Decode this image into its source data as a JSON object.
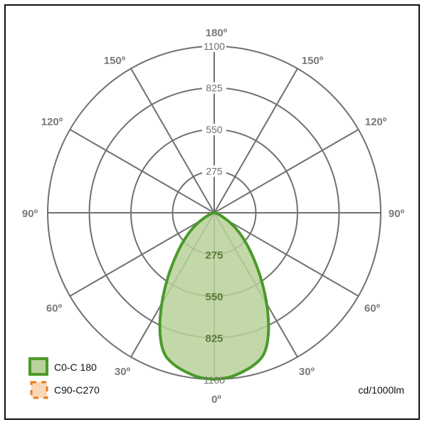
{
  "chart_data": {
    "type": "polar",
    "unit": "cd/1000lm",
    "rmax": 1100,
    "rings": [
      275,
      550,
      825,
      1100
    ],
    "angle_labels": {
      "top": "180º",
      "upper_left": "150º",
      "upper_right": "150º",
      "mid_upper_left": "120º",
      "mid_upper_right": "120º",
      "left": "90º",
      "right": "90º",
      "mid_lower_left": "60º",
      "mid_lower_right": "60º",
      "lower_left": "30º",
      "lower_right": "30º",
      "bottom": "0º"
    },
    "upper_ring_labels": [
      "275",
      "550",
      "825",
      "1100"
    ],
    "lower_ring_labels": [
      "275",
      "550",
      "825",
      "1100"
    ],
    "series": [
      {
        "name": "C0-C 180",
        "color": "#4a9a2a",
        "fill": "#b9d19a",
        "points": [
          {
            "angle": 0,
            "value": 1100
          },
          {
            "angle": 5,
            "value": 1095
          },
          {
            "angle": 10,
            "value": 1070
          },
          {
            "angle": 15,
            "value": 1040
          },
          {
            "angle": 20,
            "value": 990
          },
          {
            "angle": 25,
            "value": 860
          },
          {
            "angle": 30,
            "value": 700
          },
          {
            "angle": 35,
            "value": 550
          },
          {
            "angle": 40,
            "value": 420
          },
          {
            "angle": 45,
            "value": 320
          },
          {
            "angle": 50,
            "value": 240
          },
          {
            "angle": 55,
            "value": 170
          },
          {
            "angle": 60,
            "value": 110
          },
          {
            "angle": 70,
            "value": 40
          },
          {
            "angle": 80,
            "value": 10
          },
          {
            "angle": 90,
            "value": 0
          }
        ]
      },
      {
        "name": "C90-C270",
        "color": "#f07a1a",
        "fill": "#f9d8b8",
        "points": []
      }
    ]
  }
}
